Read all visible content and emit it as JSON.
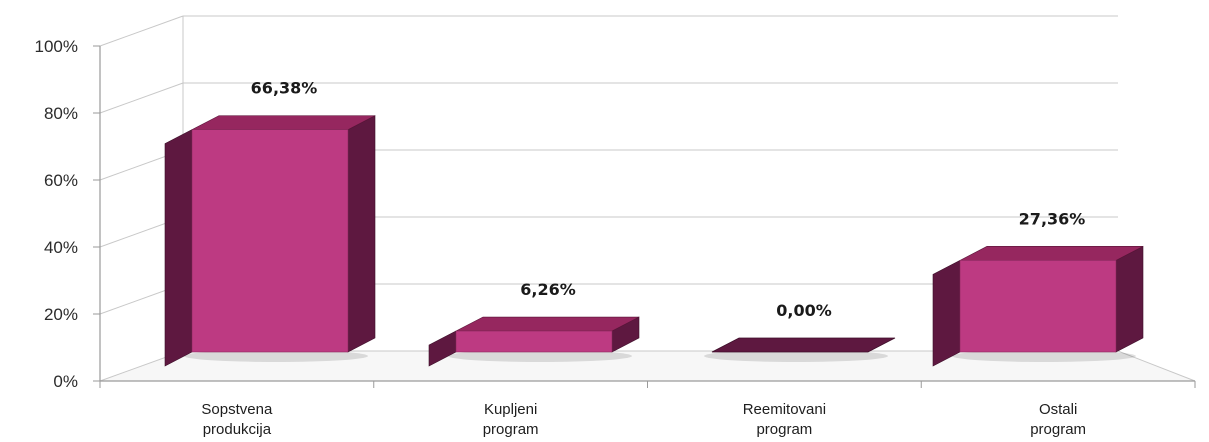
{
  "chart_data": {
    "type": "bar",
    "style": "3d-column",
    "categories": [
      [
        "Sopstvena",
        "produkcija"
      ],
      [
        "Kupljeni",
        "program"
      ],
      [
        "Reemitovani",
        "program"
      ],
      [
        "Ostali",
        "program"
      ]
    ],
    "values": [
      66.38,
      6.26,
      0.0,
      27.36
    ],
    "value_labels": [
      "66,38%",
      "6,26%",
      "0,00%",
      "27,36%"
    ],
    "y_ticks": [
      "0%",
      "20%",
      "40%",
      "60%",
      "80%",
      "100%"
    ],
    "ylim": [
      0,
      100
    ],
    "grid": true,
    "legend": "none",
    "title": "",
    "xlabel": "",
    "ylabel": "",
    "colors": {
      "front": "#bd3a82",
      "side": "#5e1840",
      "top": "#96275f",
      "grid": "#c8c8c8",
      "axis": "#9a9a9a"
    }
  }
}
